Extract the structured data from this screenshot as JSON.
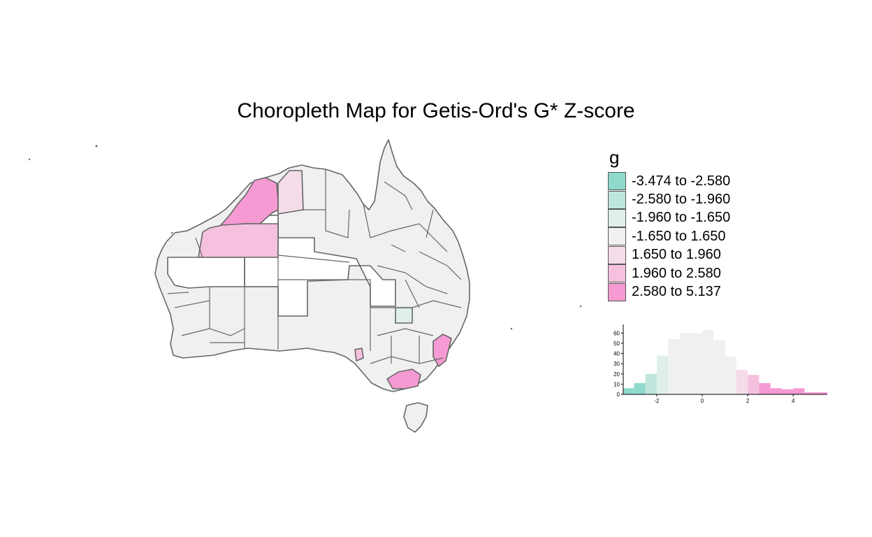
{
  "title": "Choropleth Map for Getis-Ord's G* Z-score",
  "legend": {
    "title": "g",
    "classes": [
      {
        "label": "-3.474 to -2.580",
        "color": "#8fd9cb"
      },
      {
        "label": "-2.580 to -1.960",
        "color": "#bfe6dd"
      },
      {
        "label": "-1.960 to -1.650",
        "color": "#e0efea"
      },
      {
        "label": "-1.650 to 1.650",
        "color": "#f0f0f0"
      },
      {
        "label": "1.650 to 1.960",
        "color": "#f5dce9"
      },
      {
        "label": "1.960 to 2.580",
        "color": "#f5c1df"
      },
      {
        "label": "2.580 to 5.137",
        "color": "#f59ad3"
      }
    ]
  },
  "map": {
    "outline_color": "#666666",
    "no_data_color": "#ffffff"
  },
  "chart_data": {
    "type": "bar",
    "title": "",
    "xlabel": "",
    "ylabel": "",
    "xlim": [
      -3.474,
      5.5
    ],
    "ylim": [
      0,
      65
    ],
    "xticks": [
      -2,
      0,
      2,
      4
    ],
    "yticks": [
      0,
      10,
      20,
      30,
      40,
      50,
      60
    ],
    "bins": [
      {
        "x0": -3.5,
        "x1": -3.0,
        "count": 6,
        "class": 0
      },
      {
        "x0": -3.0,
        "x1": -2.5,
        "count": 11,
        "class": 0
      },
      {
        "x0": -2.5,
        "x1": -2.0,
        "count": 20,
        "class": 1
      },
      {
        "x0": -2.0,
        "x1": -1.5,
        "count": 38,
        "class": 2
      },
      {
        "x0": -1.5,
        "x1": -1.0,
        "count": 54,
        "class": 3
      },
      {
        "x0": -1.0,
        "x1": -0.5,
        "count": 60,
        "class": 3
      },
      {
        "x0": -0.5,
        "x1": 0.0,
        "count": 60,
        "class": 3
      },
      {
        "x0": 0.0,
        "x1": 0.5,
        "count": 63,
        "class": 3
      },
      {
        "x0": 0.5,
        "x1": 1.0,
        "count": 53,
        "class": 3
      },
      {
        "x0": 1.0,
        "x1": 1.5,
        "count": 37,
        "class": 3
      },
      {
        "x0": 1.5,
        "x1": 2.0,
        "count": 24,
        "class": 4
      },
      {
        "x0": 2.0,
        "x1": 2.5,
        "count": 19,
        "class": 5
      },
      {
        "x0": 2.5,
        "x1": 3.0,
        "count": 11,
        "class": 6
      },
      {
        "x0": 3.0,
        "x1": 3.5,
        "count": 6,
        "class": 6
      },
      {
        "x0": 3.5,
        "x1": 4.0,
        "count": 5,
        "class": 6
      },
      {
        "x0": 4.0,
        "x1": 4.5,
        "count": 6,
        "class": 6
      },
      {
        "x0": 4.5,
        "x1": 5.0,
        "count": 2,
        "class": 6
      },
      {
        "x0": 5.0,
        "x1": 5.5,
        "count": 2,
        "class": 6
      }
    ]
  }
}
